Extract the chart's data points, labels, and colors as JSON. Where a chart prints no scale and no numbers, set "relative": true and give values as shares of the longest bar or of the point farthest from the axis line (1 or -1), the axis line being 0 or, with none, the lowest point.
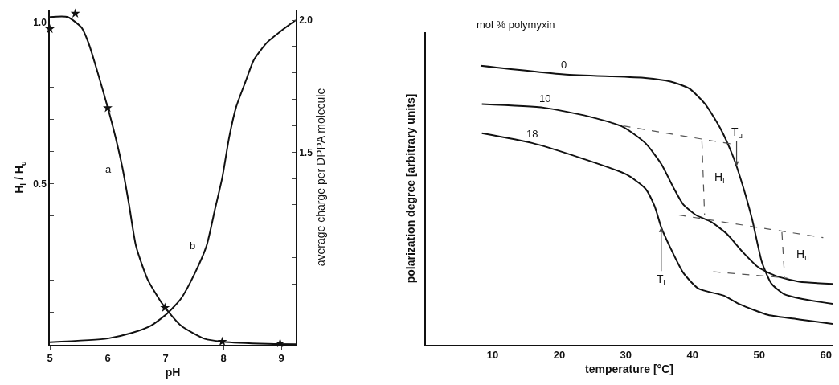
{
  "chart_data": [
    {
      "type": "line",
      "xlabel": "pH",
      "ylabel": "H$_{l}$ / H$_{u}$",
      "y2label": "average charge per DPPA molecule",
      "xlim": [
        5,
        9.25
      ],
      "xticks": [
        5,
        6,
        7,
        8,
        9
      ],
      "ylim": [
        0,
        1.04
      ],
      "yticks": [
        {
          "value": 0.1,
          "label": null
        },
        {
          "value": 0.2,
          "label": null
        },
        {
          "value": 0.3,
          "label": null
        },
        {
          "value": 0.4,
          "label": null
        },
        0.5,
        {
          "value": 0.6,
          "label": null
        },
        {
          "value": 0.7,
          "label": null
        },
        {
          "value": 0.8,
          "label": null
        },
        {
          "value": 0.9,
          "label": null
        },
        {
          "value": 1.0,
          "label": "1.0"
        }
      ],
      "y2lim": [
        0.77,
        2.04
      ],
      "y2ticks": [
        {
          "value": 1.0,
          "label": null
        },
        {
          "value": 1.1,
          "label": null
        },
        {
          "value": 1.2,
          "label": null
        },
        {
          "value": 1.3,
          "label": null
        },
        {
          "value": 1.4,
          "label": null
        },
        1.5,
        {
          "value": 1.6,
          "label": null
        },
        {
          "value": 1.7,
          "label": null
        },
        {
          "value": 1.8,
          "label": null
        },
        {
          "value": 1.9,
          "label": null
        },
        {
          "value": 2.0,
          "label": "2.0"
        }
      ],
      "grid": false,
      "marker": "none",
      "line_style": "solid",
      "series": [
        {
          "name": "a",
          "color": "#111111",
          "x": [
            5.0,
            5.31,
            5.55,
            5.67,
            5.82,
            6.0,
            6.14,
            6.26,
            6.37,
            6.49,
            6.69,
            6.96,
            7.27,
            7.67,
            7.98,
            8.76,
            9.25
          ],
          "values": [
            1.017,
            1.017,
            0.984,
            0.936,
            0.849,
            0.737,
            0.641,
            0.545,
            0.434,
            0.306,
            0.203,
            0.123,
            0.059,
            0.019,
            0.01,
            0.003,
            0.002
          ]
        },
        {
          "name": "b",
          "color": "#111111",
          "axis": "y2",
          "x": [
            5.0,
            6.0,
            6.4,
            6.75,
            7.03,
            7.27,
            7.51,
            7.71,
            7.86,
            7.98,
            8.1,
            8.22,
            8.38,
            8.53,
            8.76,
            9.0,
            9.25
          ],
          "values": [
            0.78,
            0.794,
            0.814,
            0.843,
            0.889,
            0.946,
            1.043,
            1.146,
            1.289,
            1.403,
            1.557,
            1.671,
            1.766,
            1.851,
            1.917,
            1.96,
            2.0
          ]
        },
        {
          "type": "scatter",
          "marker": "star",
          "color": "#111111",
          "x": [
            5.0,
            5.44,
            6.0,
            6.99,
            7.98,
            8.98
          ],
          "values": [
            0.98,
            1.028,
            0.735,
            0.115,
            0.01,
            0.005
          ]
        }
      ]
    },
    {
      "type": "line",
      "xlabel": "temperature [°C]",
      "ylabel": "polarization degree [arbitrary units]",
      "relative": true,
      "xlim": [
        0,
        61
      ],
      "xticks": [
        10,
        20,
        30,
        40,
        50,
        60
      ],
      "grid": false,
      "marker": "none",
      "line_style": "solid",
      "tick_labels": "x",
      "legend_title": "mol % polymyxin",
      "series": [
        {
          "name": "0",
          "color": "#111111",
          "x": [
            8.2,
            20.7,
            32.9,
            36.7,
            39.5,
            41.9,
            44.2,
            46.1,
            47.5,
            48.96,
            50.4,
            51.8,
            53.7,
            56.5,
            61
          ],
          "values": [
            1.0,
            0.969,
            0.956,
            0.943,
            0.918,
            0.862,
            0.774,
            0.673,
            0.572,
            0.447,
            0.296,
            0.22,
            0.182,
            0.164,
            0.147
          ]
        },
        {
          "name": "10",
          "color": "#111111",
          "x": [
            8.4,
            17.8,
            24.4,
            29.6,
            32.9,
            35.3,
            37.2,
            38.6,
            40.5,
            42.8,
            45.2,
            47.5,
            49.9,
            52.7,
            56.0,
            61
          ],
          "values": [
            0.862,
            0.849,
            0.818,
            0.78,
            0.723,
            0.648,
            0.56,
            0.503,
            0.465,
            0.44,
            0.396,
            0.333,
            0.277,
            0.245,
            0.226,
            0.218
          ]
        },
        {
          "name": "18",
          "color": "#111111",
          "x": [
            8.4,
            15.9,
            23.5,
            30.1,
            32.9,
            34.3,
            35.3,
            36.7,
            38.6,
            40.9,
            44.7,
            47.1,
            51.3,
            56.0,
            61
          ],
          "values": [
            0.758,
            0.723,
            0.667,
            0.61,
            0.56,
            0.497,
            0.421,
            0.346,
            0.258,
            0.201,
            0.176,
            0.145,
            0.107,
            0.091,
            0.075
          ]
        },
        {
          "color": "#555555",
          "line_style": "dashed",
          "x": [
            29.6,
            46.4
          ],
          "values": [
            0.784,
            0.717
          ]
        },
        {
          "color": "#555555",
          "line_style": "dashed",
          "x": [
            37.9,
            59.6
          ],
          "values": [
            0.465,
            0.384
          ]
        },
        {
          "color": "#555555",
          "line_style": "dashed",
          "x": [
            43.1,
            54.2
          ],
          "values": [
            0.262,
            0.239
          ]
        },
        {
          "color": "#555555",
          "line_style": "dashed",
          "x": [
            41.4,
            41.8
          ],
          "values": [
            0.73,
            0.465
          ]
        },
        {
          "color": "#555555",
          "line_style": "dashed",
          "x": [
            53.4,
            53.8
          ],
          "values": [
            0.403,
            0.243
          ]
        }
      ],
      "annotations": [
        {
          "text": "T$_{u}$",
          "x": 46.6,
          "y": 0.64
        },
        {
          "text": "T$_{l}$",
          "x": 35.3,
          "y": 0.421
        },
        {
          "text": "H$_{l}$",
          "x": 41.6,
          "y": 0.6
        },
        {
          "text": "H$_{u}$",
          "x": 53.6,
          "y": 0.323
        }
      ]
    }
  ]
}
